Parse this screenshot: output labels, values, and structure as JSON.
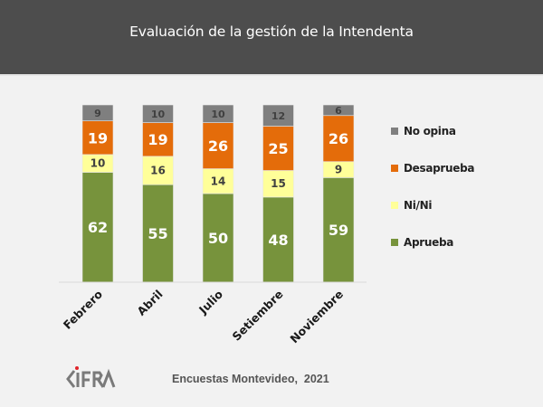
{
  "header": {
    "title": "Evaluación de la gestión de la Intendenta"
  },
  "footer": {
    "logo_text": "CIFRA",
    "source": "Encuestas Montevideo,  2021"
  },
  "colors": {
    "header_bg": "#4d4d4d",
    "no_opina": "#7f7f7f",
    "desaprueba": "#e46c0a",
    "ni_ni": "#ffff99",
    "aprueba": "#77933c",
    "logo_dot": "#e0242a"
  },
  "chart_data": {
    "type": "bar",
    "stacked": true,
    "title": "Evaluación de la gestión de la Intendenta",
    "xlabel": "",
    "ylabel": "",
    "ylim": [
      0,
      100
    ],
    "grid": false,
    "legend_position": "right",
    "categories": [
      "Febrero",
      "Abril",
      "Julio",
      "Setiembre",
      "Noviembre"
    ],
    "series": [
      {
        "name": "Aprueba",
        "color": "#77933c",
        "label_color": "#ffffff",
        "values": [
          62,
          55,
          50,
          48,
          59
        ]
      },
      {
        "name": "Ni/Ni",
        "color": "#ffff99",
        "label_color": "#404040",
        "values": [
          10,
          16,
          14,
          15,
          9
        ]
      },
      {
        "name": "Desaprueba",
        "color": "#e46c0a",
        "label_color": "#ffffff",
        "values": [
          19,
          19,
          26,
          25,
          26
        ]
      },
      {
        "name": "No opina",
        "color": "#7f7f7f",
        "label_color": "#404040",
        "values": [
          9,
          10,
          10,
          12,
          6
        ]
      }
    ],
    "legend_order": [
      "No opina",
      "Desaprueba",
      "Ni/Ni",
      "Aprueba"
    ]
  }
}
